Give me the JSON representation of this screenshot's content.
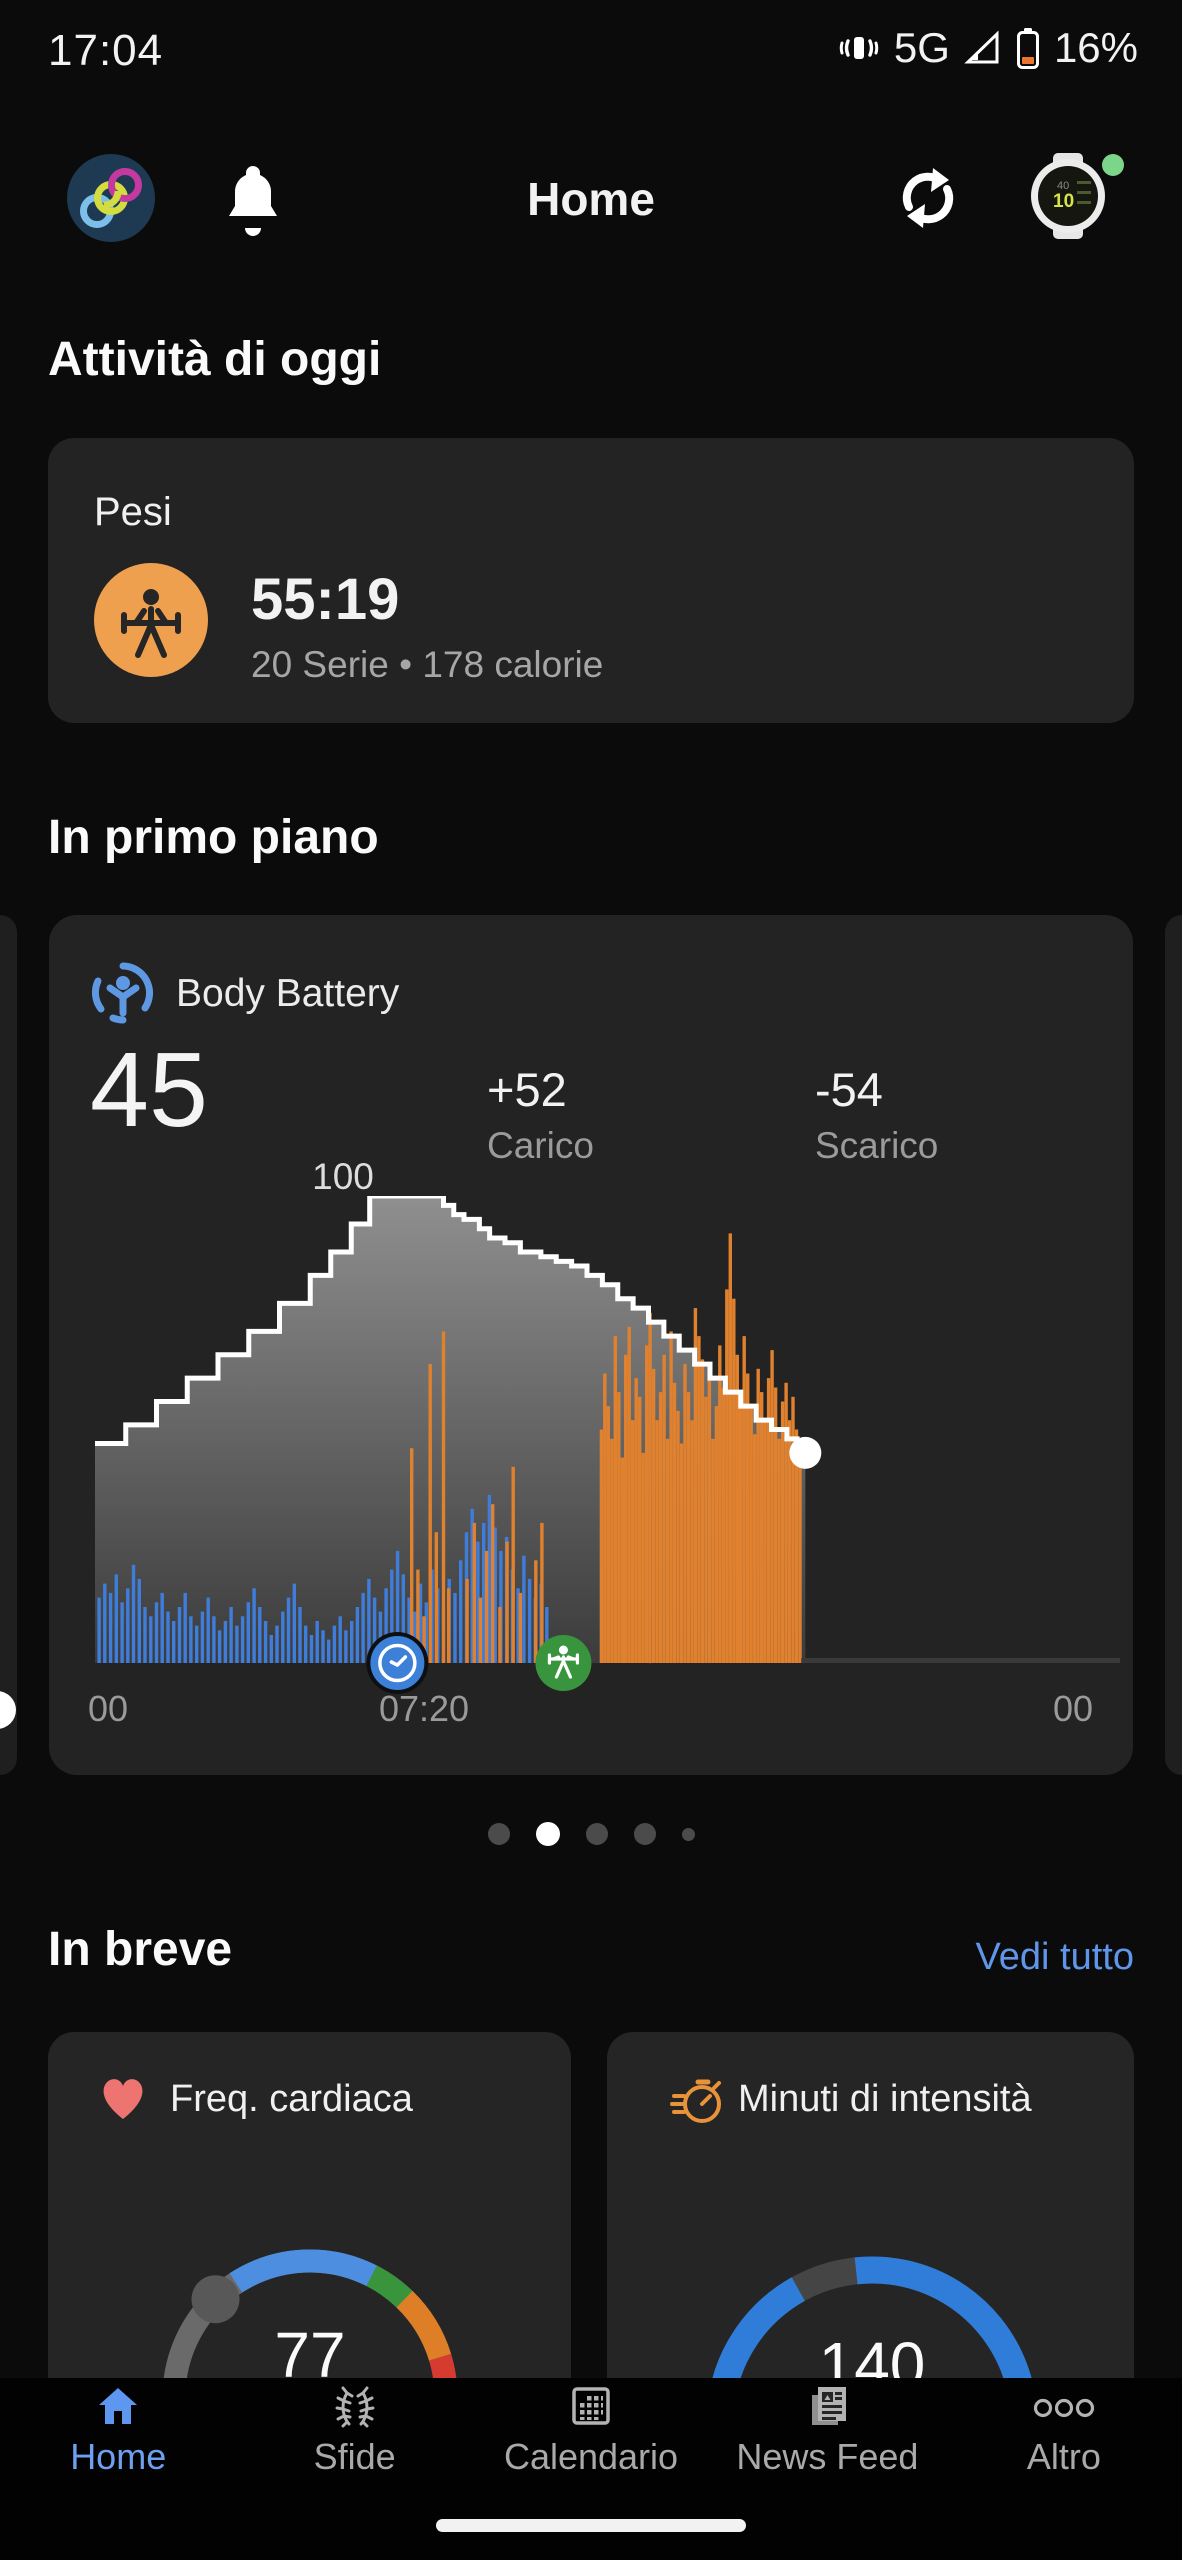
{
  "status": {
    "time": "17:04",
    "network": "5G",
    "battery": "16%"
  },
  "header": {
    "title": "Home",
    "device_text": "10"
  },
  "today": {
    "title": "Attività di oggi",
    "card": {
      "name": "Pesi",
      "duration": "55:19",
      "details": "20 Serie • 178 calorie"
    }
  },
  "featured": {
    "title": "In primo piano",
    "card": {
      "name": "Body Battery",
      "value": "45",
      "charge": {
        "value": "+52",
        "label": "Carico"
      },
      "drain": {
        "value": "-54",
        "label": "Scarico"
      }
    }
  },
  "carousel": {
    "dots": [
      {
        "size": 22,
        "color": "#4b4b4b",
        "active": false
      },
      {
        "size": 24,
        "color": "#ffffff",
        "active": true
      },
      {
        "size": 22,
        "color": "#4b4b4b",
        "active": false
      },
      {
        "size": 22,
        "color": "#4b4b4b",
        "active": false
      },
      {
        "size": 13,
        "color": "#4b4b4b",
        "active": false
      }
    ]
  },
  "glance": {
    "title": "In breve",
    "link": "Vedi tutto",
    "cards": [
      {
        "title": "Freq. cardiaca",
        "value": "77"
      },
      {
        "title": "Minuti di intensità",
        "value": "140"
      }
    ]
  },
  "nav": {
    "items": [
      {
        "label": "Home",
        "active": true
      },
      {
        "label": "Sfide",
        "active": false
      },
      {
        "label": "Calendario",
        "active": false
      },
      {
        "label": "News Feed",
        "active": false
      },
      {
        "label": "Altro",
        "active": false
      }
    ]
  },
  "palette": {
    "accent_blue": "#2f7cd9",
    "link_blue": "#6096ea",
    "nav_active": "#5e97f0",
    "stress_orange": "#e0812f",
    "rest_blue": "#3f7ddb",
    "activity_orange": "#efa04f",
    "heart_red": "#ed7470",
    "marker_green": "#38953d",
    "battery_low_orange": "#e8762e"
  },
  "chart_data": [
    {
      "type": "area",
      "title": "Body Battery",
      "ylim": [
        0,
        100
      ],
      "peak_label": "100",
      "x_labels": [
        "00",
        "07:20",
        "00"
      ],
      "x_label_pos_pct": [
        1.3,
        32.1,
        95.4
      ],
      "line_color": "#ffffff",
      "area_top_color": "#8f8f8f",
      "area_bottom_color": "#3b3b3b",
      "line": [
        [
          0,
          47
        ],
        [
          3,
          51
        ],
        [
          6,
          56
        ],
        [
          9,
          61
        ],
        [
          12,
          66
        ],
        [
          15,
          71
        ],
        [
          18,
          77
        ],
        [
          21,
          83
        ],
        [
          23,
          88
        ],
        [
          25,
          94
        ],
        [
          26.8,
          100
        ],
        [
          33.2,
          100
        ],
        [
          34,
          98
        ],
        [
          35,
          96
        ],
        [
          36,
          95
        ],
        [
          37.5,
          93
        ],
        [
          38.5,
          91
        ],
        [
          40,
          90
        ],
        [
          41.5,
          88
        ],
        [
          43.5,
          87
        ],
        [
          45,
          86
        ],
        [
          46.5,
          85
        ],
        [
          48,
          83
        ],
        [
          49.5,
          81
        ],
        [
          51,
          78
        ],
        [
          52.5,
          76
        ],
        [
          54,
          73
        ],
        [
          55.5,
          70
        ],
        [
          57,
          67
        ],
        [
          58.5,
          64
        ],
        [
          60,
          61
        ],
        [
          61.5,
          58
        ],
        [
          63,
          55
        ],
        [
          64.5,
          52
        ],
        [
          66,
          50
        ],
        [
          67.5,
          48
        ],
        [
          68.5,
          46
        ],
        [
          69.3,
          45
        ]
      ],
      "end_dot": [
        69.3,
        45
      ],
      "rest_bars": {
        "start_pct": 0.4,
        "pitch_pct": 0.56,
        "color": "#3f7ddb",
        "heights": [
          14,
          17,
          15,
          19,
          13,
          16,
          21,
          18,
          12,
          10,
          13,
          15,
          11,
          9,
          12,
          15,
          10,
          8,
          11,
          14,
          10,
          7,
          9,
          12,
          8,
          10,
          13,
          16,
          12,
          9,
          6,
          8,
          11,
          14,
          17,
          12,
          8,
          6,
          9,
          7,
          5,
          8,
          10,
          7,
          9,
          12,
          15,
          18,
          14,
          11,
          16,
          20,
          24,
          19,
          14,
          11,
          17,
          13,
          20,
          16,
          12,
          18,
          15,
          22,
          28,
          33,
          26,
          30,
          36,
          29,
          24,
          27,
          20,
          16,
          23,
          18,
          14,
          17,
          12
        ]
      },
      "stress_spikes": {
        "color": "#e0812f",
        "points": [
          [
            30.9,
            46
          ],
          [
            31.5,
            20
          ],
          [
            32.1,
            10
          ],
          [
            32.7,
            64
          ],
          [
            33.3,
            28
          ],
          [
            34.0,
            71
          ],
          [
            34.5,
            16
          ],
          [
            36.3,
            18
          ],
          [
            37.0,
            30
          ],
          [
            37.6,
            14
          ],
          [
            38.2,
            24
          ],
          [
            38.8,
            34
          ],
          [
            39.5,
            12
          ],
          [
            40.2,
            26
          ],
          [
            40.8,
            42
          ],
          [
            41.5,
            15
          ],
          [
            43.0,
            22
          ],
          [
            43.6,
            30
          ]
        ]
      },
      "workout_bars": {
        "start_pct": 49.4,
        "pitch_pct": 0.34,
        "color": "#e0812f",
        "heights": [
          50,
          62,
          55,
          48,
          70,
          58,
          44,
          66,
          72,
          52,
          61,
          57,
          45,
          68,
          75,
          63,
          52,
          58,
          66,
          48,
          71,
          60,
          54,
          47,
          64,
          58,
          52,
          76,
          70,
          65,
          57,
          62,
          48,
          55,
          68,
          59,
          80,
          92,
          78,
          66,
          57,
          70,
          62,
          55,
          49,
          63,
          58,
          52,
          61,
          67,
          59,
          48,
          56,
          60,
          52,
          57,
          50,
          46
        ]
      },
      "markers": [
        {
          "kind": "clock",
          "x_pct": 29.5
        },
        {
          "kind": "strength-activity",
          "x_pct": 45.7
        }
      ]
    },
    {
      "type": "gauge",
      "title": "Freq. cardiaca",
      "value": 77,
      "track_color": "#6a6a6a",
      "marker_angle": -44,
      "marker_color": "#585858",
      "segments": [
        {
          "from": -33,
          "to": 27,
          "color": "#4e8ee0"
        },
        {
          "from": 27,
          "to": 44,
          "color": "#38953c"
        },
        {
          "from": 44,
          "to": 73,
          "color": "#de7e27"
        },
        {
          "from": 73,
          "to": 109,
          "color": "#d63b2f"
        }
      ]
    },
    {
      "type": "gauge",
      "title": "Minuti di intensità",
      "value": 140,
      "span": [
        -145,
        145
      ],
      "gap": [
        -29,
        -6
      ],
      "fill_color": "#2f7cd9",
      "track_color": "#454545"
    }
  ]
}
